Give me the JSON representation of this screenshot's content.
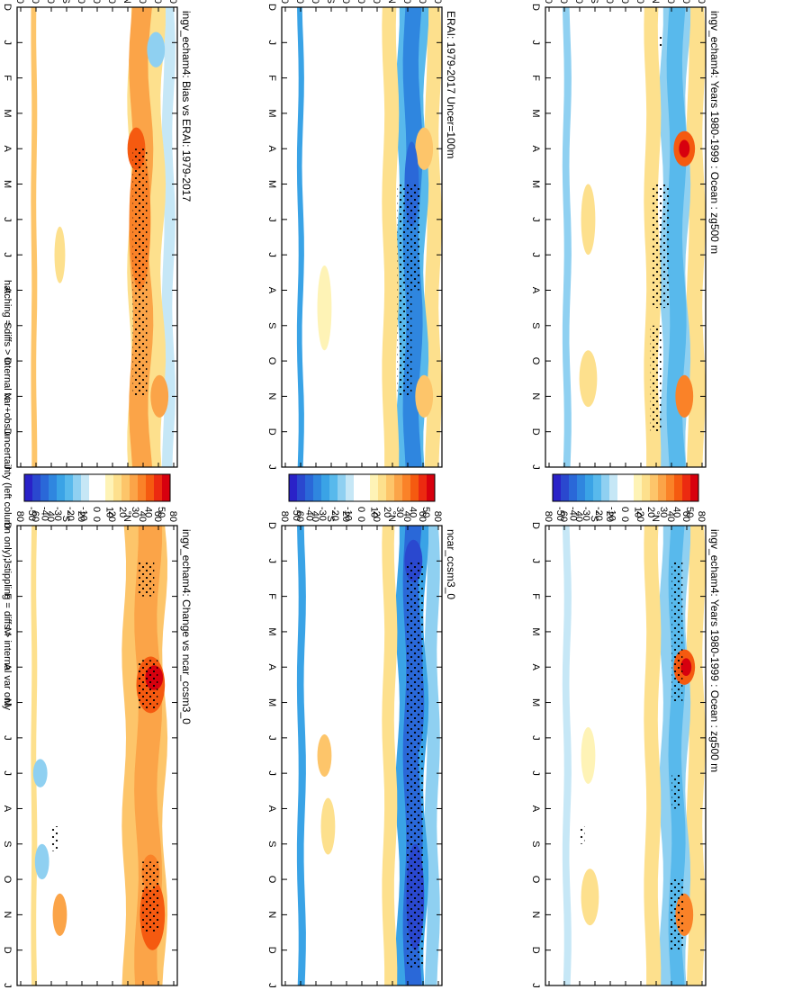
{
  "footnote": "hatching = diffs > internal var+obs uncertainty (left column only); stippling = diffs > internal var only",
  "month_labels": [
    "D",
    "J",
    "F",
    "M",
    "A",
    "M",
    "J",
    "J",
    "A",
    "S",
    "O",
    "N",
    "D",
    "J"
  ],
  "lat_labels": [
    "80",
    "60",
    "40",
    "°N",
    "20",
    "0",
    "20",
    "°S",
    "40",
    "60",
    "80"
  ],
  "colorbar": {
    "labels": [
      "50",
      "40",
      "30",
      "20",
      "10",
      "0",
      "-10",
      "-20",
      "-30",
      "-40",
      "-50"
    ],
    "colors": [
      "#d7000e",
      "#ec2a10",
      "#f55a10",
      "#fa8228",
      "#fba448",
      "#fdc56a",
      "#fde08d",
      "#fef3b6",
      "#ffffff",
      "#ffffff",
      "#c6e7f6",
      "#8fd0f1",
      "#58b9ec",
      "#3aa3e6",
      "#2f86df",
      "#2a68d8",
      "#2a48cf",
      "#2a22c8"
    ]
  },
  "panels": {
    "p1": {
      "title": "ingv_echam4: Years 1980-1999 : Ocean : zg500 m"
    },
    "p2": {
      "title": "ingv_echam4: Years 1980-1999 : Ocean : zg500 m"
    },
    "p3": {
      "title": "ERAI: 1979-2017 Uncer=100m"
    },
    "p4": {
      "title": "ncar_ccsm3_0"
    },
    "p5": {
      "title": "ingv_echam4: Bias vs ERAI: 1979-2017"
    },
    "p6": {
      "title": "ingv_echam4: Change vs ncar_ccsm3_0"
    }
  },
  "chart_data": [
    {
      "type": "heatmap",
      "title": "ingv_echam4: Years 1980-1999 : Ocean : zg500 m",
      "x": "month (D-J)",
      "y": "latitude 90N-90S",
      "value_range": [
        -50,
        50
      ],
      "units": "m"
    },
    {
      "type": "heatmap",
      "title": "ingv_echam4: Years 1980-1999 : Ocean : zg500 m",
      "x": "month (D-J)",
      "y": "latitude 90N-90S",
      "value_range": [
        -50,
        50
      ],
      "units": "m"
    },
    {
      "type": "heatmap",
      "title": "ERAI: 1979-2017 Uncer=100m",
      "x": "month (D-J)",
      "y": "latitude 90N-90S",
      "value_range": [
        -50,
        50
      ],
      "units": "m"
    },
    {
      "type": "heatmap",
      "title": "ncar_ccsm3_0",
      "x": "month (D-J)",
      "y": "latitude 90N-90S",
      "value_range": [
        -50,
        50
      ],
      "units": "m"
    },
    {
      "type": "heatmap",
      "title": "ingv_echam4: Bias vs ERAI: 1979-2017",
      "x": "month (D-J)",
      "y": "latitude 90N-90S",
      "value_range": [
        -50,
        50
      ],
      "units": "m"
    },
    {
      "type": "heatmap",
      "title": "ingv_echam4: Change vs ncar_ccsm3_0",
      "x": "month (D-J)",
      "y": "latitude 90N-90S",
      "value_range": [
        -50,
        50
      ],
      "units": "m"
    }
  ]
}
